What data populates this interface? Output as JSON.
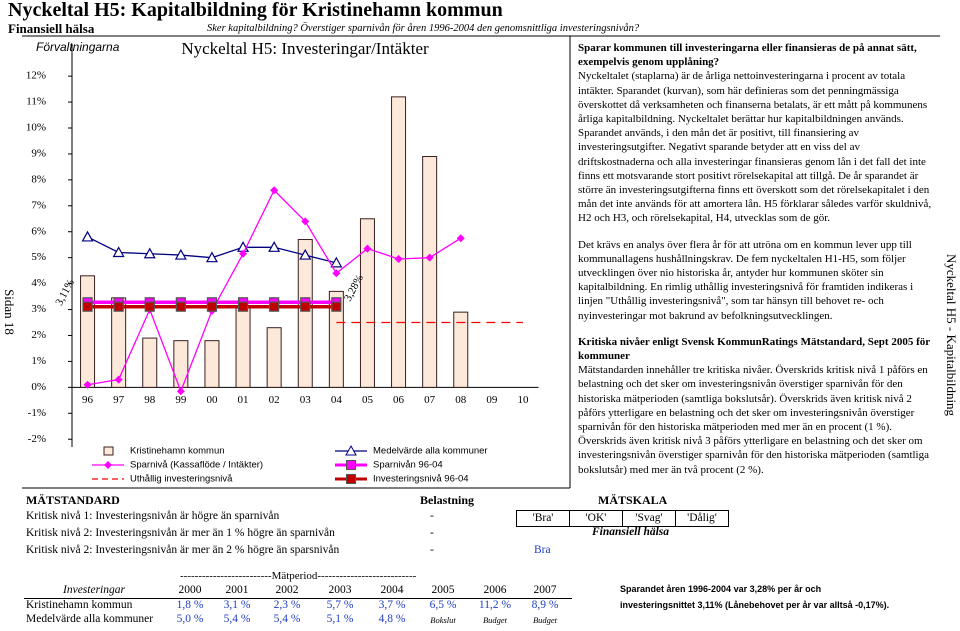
{
  "header": {
    "title": "Nyckeltal H5: Kapitalbildning för Kristinehamn kommun",
    "subtitle": "Finansiell hälsa",
    "question": "Sker kapitalbildning? Överstiger sparnivån för åren 1996-2004 den genomsnittliga investeringsnivån?",
    "page": "Sidan 18",
    "side_label": "Nyckeltal H5 - Kapitalbildning"
  },
  "chart_data": {
    "type": "combo",
    "org_label": "Förvaltningarna",
    "title": "Nyckeltal H5: Investeringar/Intäkter",
    "categories": [
      "96",
      "97",
      "98",
      "99",
      "00",
      "01",
      "02",
      "03",
      "04",
      "05",
      "06",
      "07",
      "08",
      "09",
      "10"
    ],
    "ylim": [
      -2.3,
      13.2
    ],
    "yticks": [
      {
        "value": -2,
        "label": "-2%"
      },
      {
        "value": -1,
        "label": "-1%"
      },
      {
        "value": 0,
        "label": "0%"
      },
      {
        "value": 1,
        "label": "1%"
      },
      {
        "value": 2,
        "label": "2%"
      },
      {
        "value": 3,
        "label": "3%"
      },
      {
        "value": 4,
        "label": "4%"
      },
      {
        "value": 5,
        "label": "5%"
      },
      {
        "value": 6,
        "label": "6%"
      },
      {
        "value": 7,
        "label": "7%"
      },
      {
        "value": 8,
        "label": "8%"
      },
      {
        "value": 9,
        "label": "9%"
      },
      {
        "value": 10,
        "label": "10%"
      },
      {
        "value": 11,
        "label": "11%"
      },
      {
        "value": 12,
        "label": "12%"
      }
    ],
    "series": [
      {
        "name": "Kristinehamn kommun",
        "kind": "bar",
        "color": "#fde9d9",
        "values": [
          4.3,
          3.45,
          1.9,
          1.8,
          1.8,
          3.1,
          2.3,
          5.7,
          3.7,
          6.5,
          11.2,
          8.9,
          2.9,
          null,
          null
        ]
      },
      {
        "name": "Medelvärde alla kommuner",
        "kind": "line",
        "marker": "triangle",
        "color": "#000080",
        "values": [
          5.8,
          5.2,
          5.15,
          5.1,
          5.0,
          5.4,
          5.4,
          5.1,
          4.8,
          null,
          null,
          null,
          null,
          null,
          null
        ]
      },
      {
        "name": "Sparnivå (Kassaflöde / Intäkter)",
        "kind": "line",
        "marker": "diamond",
        "color": "#ff00ff",
        "values": [
          0.1,
          0.3,
          3.0,
          -0.15,
          2.95,
          5.15,
          7.6,
          6.4,
          4.4,
          5.35,
          4.95,
          5.0,
          5.75,
          null,
          null
        ]
      },
      {
        "name": "Sparnivån 96-04",
        "kind": "line",
        "marker": "square",
        "thick": true,
        "color": "#ff00ff",
        "values": [
          3.28,
          3.28,
          3.28,
          3.28,
          3.28,
          3.28,
          3.28,
          3.28,
          3.28,
          null,
          null,
          null,
          null,
          null,
          null
        ],
        "value_labels": [
          null,
          null,
          null,
          null,
          null,
          null,
          null,
          null,
          "3,28%",
          null,
          null,
          null,
          null,
          null,
          null
        ]
      },
      {
        "name": "Uthållig investeringsnivå",
        "kind": "line",
        "marker": "none",
        "dash": true,
        "color": "#ff0000",
        "values": [
          null,
          null,
          null,
          null,
          null,
          null,
          null,
          null,
          2.5,
          2.5,
          2.5,
          2.5,
          2.5,
          2.5,
          2.5
        ]
      },
      {
        "name": "Investeringsnivå 96-04",
        "kind": "line",
        "marker": "square",
        "thick": true,
        "color": "#c00000",
        "values": [
          3.11,
          3.11,
          3.11,
          3.11,
          3.11,
          3.11,
          3.11,
          3.11,
          3.11,
          null,
          null,
          null,
          null,
          null,
          null
        ],
        "value_labels": [
          "3,11%",
          null,
          null,
          null,
          null,
          null,
          null,
          null,
          null,
          null,
          null,
          null,
          null,
          null,
          null
        ]
      }
    ]
  },
  "text": {
    "q1": "Sparar kommunen till investeringarna eller finansieras de på annat sätt, exempelvis genom upplåning?",
    "p1": "Nyckeltalet (staplarna) är de årliga nettoinvesteringarna i procent av totala intäkter. Sparandet (kurvan), som här definieras som det penningmässiga överskottet då verksamheten och finanserna betalats, är ett mått på kommunens årliga kapitalbildning. Nyckeltalet berättar hur kapitalbildningen används. Sparandet används, i den mån det är positivt, till finansiering av investeringsutgifter. Negativt sparande betyder att en viss del av driftskostnaderna och alla investeringar finansieras genom lån i det fall det inte finns ett motsvarande stort positivt rörelsekapital att tillgå. De år sparandet är större än investeringsutgifterna finns ett överskott som det rörelsekapitalet i den mån det inte används för att amortera lån. H5 förklarar således varför skuldnivå, H2 och H3, och rörelsekapital, H4, utvecklas som de gör.",
    "p2": "Det krävs en analys över flera år för att utröna om en kommun lever upp till kommunallagens hushållningskrav. De fem nyckeltalen H1-H5, som följer utvecklingen över nio historiska år, antyder hur kommunen sköter sin kapitalbildning. En rimlig uthållig investeringsnivå för framtiden indikeras i linjen \"Uthållig investeringsnivå\", som tar hänsyn till behovet re- och nyinvesteringar mot bakrund av befolkningsutvecklingen.",
    "h3": "Kritiska nivåer enligt Svensk KommunRatings Mätstandard, Sept 2005 för kommuner",
    "p3": "Mätstandarden innehåller tre kritiska nivåer. Överskrids kritisk nivå 1 påförs en belastning och det sker om investeringsnivån överstiger sparnivån för den historiska mätperioden (samtliga bokslutsår). Överskrids även kritisk nivå 2 påförs ytterligare en belastning och det sker om investeringsnivån överstiger sparnivån för den historiska mätperioden med mer än en procent (1 %). Överskrids även kritisk nivå 3 påförs ytterligare en belastning och det sker om investeringsnivån överstiger sparnivån för den historiska mätperioden (samtliga bokslutsår) med mer än två procent (2 %)."
  },
  "standard": {
    "heading": "MÄTSTANDARD",
    "load_heading": "Belastning",
    "rows": [
      [
        "Kritisk nivå 1: Investeringsnivån är högre än sparnivån",
        "-"
      ],
      [
        "Kritisk nivå 2: Investeringsnivån är mer än 1 % högre än sparnivån",
        "-"
      ],
      [
        "Kritisk nivå 2: Investeringsnivån är mer än 2 % högre än sparsnivån",
        "-"
      ]
    ],
    "scale_heading": "MÄTSKALA",
    "scale": [
      "'Bra'",
      "'OK'",
      "'Svag'",
      "'Dålig'"
    ],
    "scale_caption": "Finansiell hälsa",
    "result": "Bra"
  },
  "period": {
    "banner": "-------------------------Mätperiod---------------------------",
    "header": [
      "Investeringar",
      "2000",
      "2001",
      "2002",
      "2003",
      "2004",
      "2005",
      "2006",
      "2007"
    ],
    "rows": [
      [
        "Kristinehamn kommun",
        "1,8 %",
        "3,1 %",
        "2,3 %",
        "5,7 %",
        "3,7 %",
        "6,5 %",
        "11,2 %",
        "8,9 %"
      ],
      [
        "Medelvärde alla kommuner",
        "5,0 %",
        "5,4 %",
        "5,4 %",
        "5,1 %",
        "4,8 %",
        "Bokslut",
        "Budget",
        "Budget"
      ]
    ],
    "note": [
      "Sparandet åren 1996-2004 var 3,28% per år och",
      "investeringsnittet 3,11% (Lånebehovet per år var alltså -0,17%)."
    ]
  }
}
